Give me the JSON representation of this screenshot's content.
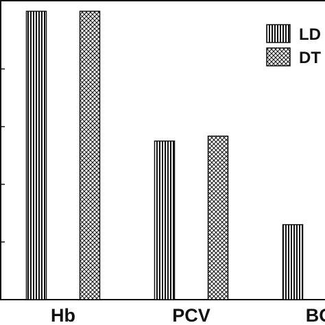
{
  "chart_data": {
    "type": "bar",
    "categories": [
      "Hb",
      "PCV",
      "BG"
    ],
    "series": [
      {
        "name": "LD",
        "pattern": "vertical-lines",
        "values": [
          100,
          55,
          26
        ]
      },
      {
        "name": "DT",
        "pattern": "crosshatch",
        "values": [
          100,
          56.7,
          null
        ]
      }
    ],
    "title": "",
    "xlabel": "",
    "ylabel": "",
    "ylim": [
      0,
      102
    ],
    "yticks": [
      20,
      40,
      60,
      80
    ],
    "grid": false,
    "legend_position": "top-right",
    "colors": {
      "bar_fill": "#ffffff",
      "pattern_ink": "#111111",
      "axis": "#111111"
    }
  }
}
